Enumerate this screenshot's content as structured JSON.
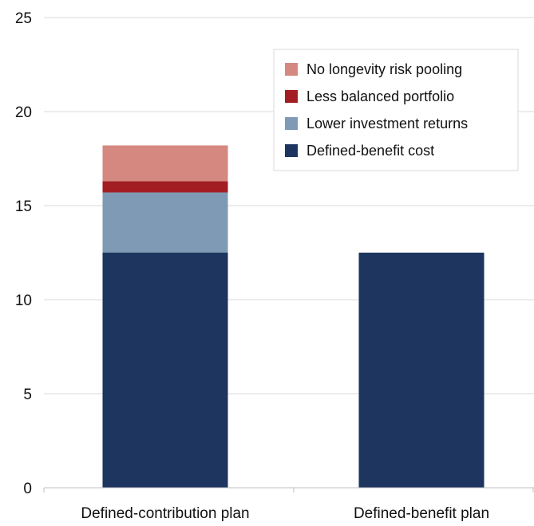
{
  "chart_data": {
    "type": "bar",
    "stacked": true,
    "categories": [
      "Defined-contribution plan",
      "Defined-benefit plan"
    ],
    "series": [
      {
        "name": "Defined-benefit cost",
        "color": "#1d355f",
        "values": [
          12.5,
          12.5
        ]
      },
      {
        "name": "Lower investment returns",
        "color": "#7f9ab5",
        "values": [
          3.2,
          0
        ]
      },
      {
        "name": "Less balanced portfolio",
        "color": "#a31e22",
        "values": [
          0.6,
          0
        ]
      },
      {
        "name": "No longevity risk pooling",
        "color": "#d48880",
        "values": [
          1.9,
          0
        ]
      }
    ],
    "legend_order": [
      "No longevity risk pooling",
      "Less balanced portfolio",
      "Lower investment returns",
      "Defined-benefit cost"
    ],
    "yticks": [
      "0",
      "5",
      "10",
      "15",
      "20",
      "25"
    ],
    "ylim": [
      0,
      25
    ],
    "grid": true,
    "legend_position": "top-right"
  }
}
